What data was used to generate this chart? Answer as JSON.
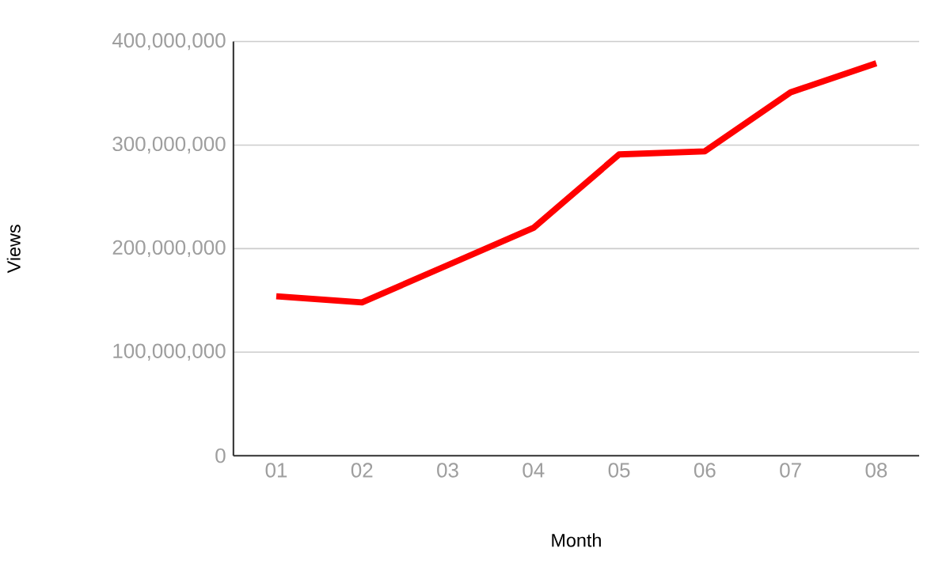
{
  "chart_data": {
    "type": "line",
    "xlabel": "Month",
    "ylabel": "Views",
    "categories": [
      "01",
      "02",
      "03",
      "04",
      "05",
      "06",
      "07",
      "08"
    ],
    "series": [
      {
        "color": "#ff0000",
        "values": [
          154000000,
          148000000,
          184000000,
          220000000,
          291000000,
          294000000,
          351000000,
          379000000
        ]
      }
    ],
    "ylim": [
      0,
      400000000
    ],
    "yticks": [
      0,
      {
        "value": 100000000,
        "label": "100,000,000"
      },
      {
        "value": 200000000,
        "label": "200,000,000"
      },
      {
        "value": 300000000,
        "label": "300,000,000"
      },
      {
        "value": 400000000,
        "label": "400,000,000"
      }
    ],
    "grid": "y",
    "marker": "none",
    "line_style": "solid"
  }
}
